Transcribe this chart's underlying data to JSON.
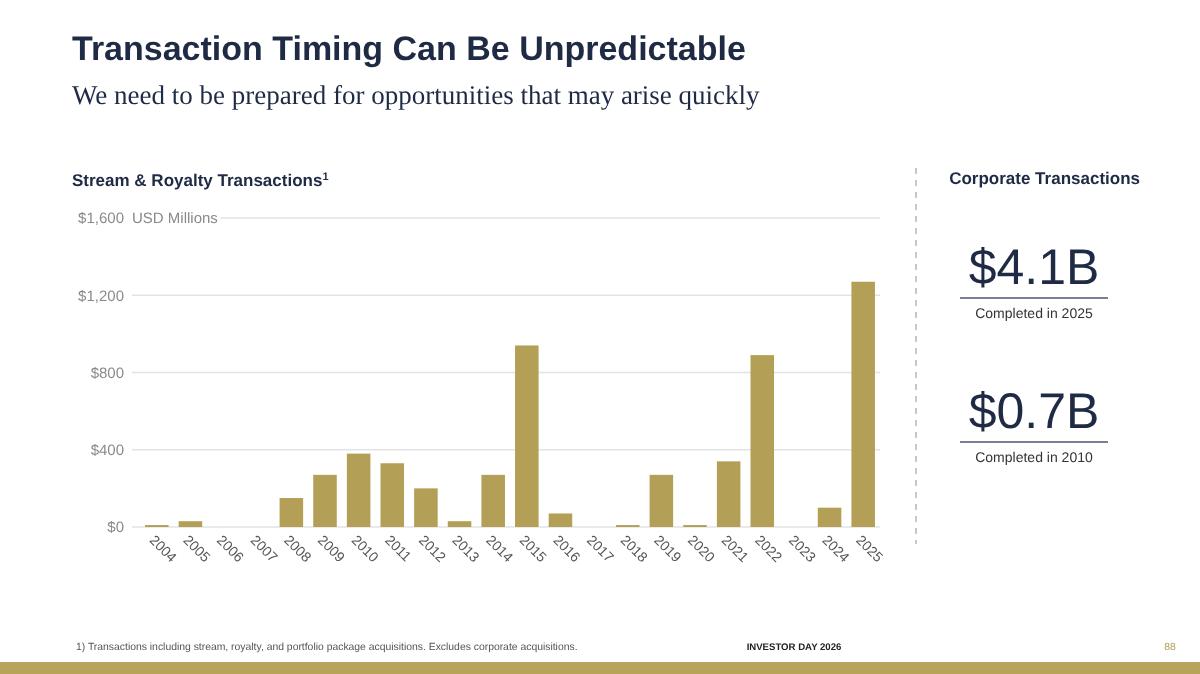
{
  "chart_data": [
    {
      "type": "bar",
      "title": "Transaction Timing Can Be Unpredictable",
      "subtitle": "We need to be prepared for opportunities that may arise quickly",
      "ylabel": "USD Millions",
      "annotations": [
        "Stream & Royalty Transactions$^{1}$",
        "1)    Transactions including stream, royalty, and portfolio package acquisitions. Excludes corporate acquisitions.",
        "INVESTOR DAY 2026",
        "88"
      ],
      "categories": [
        "2004",
        "2005",
        "2006",
        "2007",
        "2008",
        "2009",
        "2010",
        "2011",
        "2012",
        "2013",
        "2014",
        "2015",
        "2016",
        "2017",
        "2018",
        "2019",
        "2020",
        "2021",
        "2022",
        "2023",
        "2024",
        "2025"
      ],
      "values": [
        10,
        30,
        0,
        0,
        150,
        270,
        380,
        330,
        200,
        30,
        270,
        940,
        70,
        0,
        10,
        270,
        10,
        340,
        890,
        0,
        100,
        1270
      ],
      "color": "#b39f55",
      "ylim": [
        0,
        1600
      ],
      "yticks": [
        {
          "value": 0,
          "label": "$0"
        },
        {
          "value": 400,
          "label": "$400"
        },
        {
          "value": 800,
          "label": "$800"
        },
        {
          "value": 1200,
          "label": "$1,200"
        },
        {
          "value": 1600,
          "label": "$1,600"
        }
      ],
      "grid": "y"
    },
    {
      "type": "other",
      "title": "Corporate Transactions",
      "annotations": [
        "$4.1B",
        "Completed in 2025",
        "$0.7B",
        "Completed in 2010"
      ]
    }
  ]
}
